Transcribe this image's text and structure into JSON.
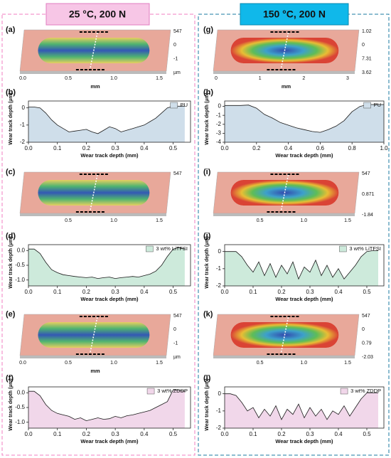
{
  "columns": [
    {
      "header": "25 °C, 200 N"
    },
    {
      "header": "150 °C, 200 N"
    }
  ],
  "images": [
    {
      "label": "(a)",
      "right_labels": [
        "547",
        "0",
        "-1",
        "µm"
      ],
      "bottom_labels": [
        "0.0",
        "0.5",
        "1.0",
        "1.5"
      ],
      "unit": "mm"
    },
    {
      "label": "(g)",
      "right_labels": [
        "1.02",
        "0",
        "7.31",
        "3.62"
      ],
      "bottom_labels": [
        "0",
        "1",
        "2",
        "3"
      ],
      "unit": "mm"
    },
    {
      "label": "(c)",
      "right_labels": [
        "547"
      ],
      "bottom_labels": [
        "0.5",
        "1.0",
        "1.5"
      ]
    },
    {
      "label": "(i)",
      "right_labels": [
        "547",
        "0.871",
        "-1.84"
      ],
      "bottom_labels": [
        "0.5",
        "1.0",
        "1.5"
      ]
    },
    {
      "label": "(e)",
      "right_labels": [
        "547",
        "0",
        "-1",
        "µm"
      ],
      "bottom_labels": [
        "0.0",
        "0.5",
        "1.0",
        "1.5"
      ],
      "unit": "mm"
    },
    {
      "label": "(k)",
      "right_labels": [
        "547",
        "0",
        "0.79",
        "-2.03"
      ],
      "bottom_labels": [
        "0.5",
        "1.0",
        "1.5"
      ]
    }
  ],
  "chart_data": [
    {
      "type": "line",
      "panel_label": "(b)",
      "x_label": "Wear track depth (mm)",
      "y_label": "Wear track depth (µm)",
      "legend": "upper right",
      "x": [
        0,
        0.02,
        0.04,
        0.06,
        0.08,
        0.1,
        0.12,
        0.14,
        0.16,
        0.18,
        0.2,
        0.22,
        0.24,
        0.26,
        0.28,
        0.3,
        0.32,
        0.34,
        0.36,
        0.38,
        0.4,
        0.42,
        0.44,
        0.46,
        0.48,
        0.5,
        0.52,
        0.54
      ],
      "series": [
        {
          "name": "PU",
          "color": "#1a1a1a",
          "fill": "#cfdeea",
          "values": [
            0.05,
            0.05,
            0,
            -0.3,
            -0.7,
            -1.0,
            -1.2,
            -1.4,
            -1.35,
            -1.3,
            -1.25,
            -1.4,
            -1.5,
            -1.3,
            -1.1,
            -1.2,
            -1.4,
            -1.3,
            -1.2,
            -1.1,
            -1.0,
            -0.8,
            -0.6,
            -0.3,
            0,
            0.1,
            0.1,
            0.1
          ]
        }
      ],
      "xlim": [
        0,
        0.56
      ],
      "xticks": [
        {
          "value": 0,
          "label": "0.0"
        },
        0.1,
        0.2,
        0.3,
        0.4,
        0.5
      ],
      "ylim": [
        -2,
        0.4
      ],
      "yticks": [
        0,
        -1,
        -2
      ]
    },
    {
      "type": "line",
      "panel_label": "(h)",
      "x_label": "Wear track depth (mm)",
      "y_label": "Wear track depth (µm)",
      "legend": "upper right",
      "x": [
        0,
        0.05,
        0.1,
        0.15,
        0.2,
        0.25,
        0.3,
        0.35,
        0.4,
        0.45,
        0.5,
        0.55,
        0.6,
        0.65,
        0.7,
        0.75,
        0.8,
        0.85,
        0.9,
        0.95,
        1.0
      ],
      "series": [
        {
          "name": "PU",
          "color": "#1a1a1a",
          "fill": "#cfdeea",
          "values": [
            0.1,
            0.1,
            0.1,
            0.15,
            -0.2,
            -0.9,
            -1.3,
            -1.8,
            -2.1,
            -2.4,
            -2.6,
            -2.8,
            -2.9,
            -2.6,
            -2.2,
            -1.6,
            -0.6,
            0,
            0.2,
            0.2,
            0.2
          ]
        }
      ],
      "xlim": [
        0,
        1.0
      ],
      "xticks": [
        {
          "value": 0,
          "label": "0.0"
        },
        0.2,
        0.4,
        0.6,
        0.8,
        {
          "value": 1,
          "label": "1.0"
        }
      ],
      "ylim": [
        -4,
        0.6
      ],
      "yticks": [
        0,
        -1,
        -2,
        -3,
        -4
      ]
    },
    {
      "type": "line",
      "panel_label": "(d)",
      "x_label": "Wear track depth (mm)",
      "y_label": "Wear track depth (µm)",
      "legend": "upper right",
      "x": [
        0,
        0.02,
        0.04,
        0.06,
        0.08,
        0.1,
        0.12,
        0.14,
        0.16,
        0.18,
        0.2,
        0.22,
        0.24,
        0.26,
        0.28,
        0.3,
        0.32,
        0.34,
        0.36,
        0.38,
        0.4,
        0.42,
        0.44,
        0.46,
        0.48,
        0.5,
        0.52,
        0.54
      ],
      "series": [
        {
          "name": "3 wt% LiTFSI",
          "color": "#1a1a1a",
          "fill": "#cdeadb",
          "values": [
            0.05,
            0.05,
            -0.1,
            -0.4,
            -0.65,
            -0.75,
            -0.82,
            -0.85,
            -0.88,
            -0.9,
            -0.92,
            -0.9,
            -0.95,
            -0.92,
            -0.9,
            -0.95,
            -0.92,
            -0.9,
            -0.88,
            -0.9,
            -0.85,
            -0.8,
            -0.7,
            -0.5,
            -0.2,
            0.05,
            0.1,
            0.05
          ]
        }
      ],
      "xlim": [
        0,
        0.56
      ],
      "xticks": [
        {
          "value": 0,
          "label": "0.0"
        },
        0.1,
        0.2,
        0.3,
        0.4,
        0.5
      ],
      "ylim": [
        -1.2,
        0.2
      ],
      "yticks": [
        {
          "value": 0,
          "label": "0.0"
        },
        -0.5,
        {
          "value": -1,
          "label": "-1.0"
        }
      ]
    },
    {
      "type": "line",
      "panel_label": "(j)",
      "x_label": "Wear track depth (mm)",
      "y_label": "Wear track depth (µm)",
      "legend": "upper right",
      "x": [
        0,
        0.02,
        0.04,
        0.06,
        0.08,
        0.1,
        0.12,
        0.14,
        0.16,
        0.18,
        0.2,
        0.22,
        0.24,
        0.26,
        0.28,
        0.3,
        0.32,
        0.34,
        0.36,
        0.38,
        0.4,
        0.42,
        0.44,
        0.46,
        0.48,
        0.5,
        0.52,
        0.54
      ],
      "series": [
        {
          "name": "3 wt% LiTFSI",
          "color": "#1a1a1a",
          "fill": "#cdeadb",
          "values": [
            0,
            0,
            0,
            -0.3,
            -0.8,
            -1.2,
            -0.6,
            -1.4,
            -0.7,
            -1.5,
            -0.8,
            -1.3,
            -0.6,
            -1.6,
            -0.9,
            -1.2,
            -0.5,
            -1.4,
            -0.8,
            -1.5,
            -1.0,
            -1.6,
            -1.2,
            -0.8,
            -0.3,
            0,
            0.05,
            0.05
          ]
        }
      ],
      "xlim": [
        0,
        0.56
      ],
      "xticks": [
        {
          "value": 0,
          "label": "0.0"
        },
        0.1,
        0.2,
        0.3,
        0.4,
        0.5
      ],
      "ylim": [
        -2,
        0.4
      ],
      "yticks": [
        0,
        -1,
        -2
      ]
    },
    {
      "type": "line",
      "panel_label": "(f)",
      "x_label": "Wear track depth (mm)",
      "y_label": "Wear track depth (µm)",
      "legend": "upper right",
      "x": [
        0,
        0.02,
        0.04,
        0.06,
        0.08,
        0.1,
        0.12,
        0.14,
        0.16,
        0.18,
        0.2,
        0.22,
        0.24,
        0.26,
        0.28,
        0.3,
        0.32,
        0.34,
        0.36,
        0.38,
        0.4,
        0.42,
        0.44,
        0.46,
        0.48,
        0.5,
        0.52,
        0.54
      ],
      "series": [
        {
          "name": "3 wt% ZDDP",
          "color": "#1a1a1a",
          "fill": "#f1d7ea",
          "values": [
            0.05,
            0.05,
            -0.1,
            -0.4,
            -0.6,
            -0.7,
            -0.75,
            -0.8,
            -0.9,
            -0.85,
            -0.95,
            -0.9,
            -0.85,
            -0.9,
            -0.88,
            -0.8,
            -0.85,
            -0.78,
            -0.75,
            -0.7,
            -0.65,
            -0.6,
            -0.5,
            -0.4,
            -0.3,
            0.1,
            0.08,
            0.05
          ]
        }
      ],
      "xlim": [
        0,
        0.56
      ],
      "xticks": [
        {
          "value": 0,
          "label": "0.0"
        },
        0.1,
        0.2,
        0.3,
        0.4,
        0.5
      ],
      "ylim": [
        -1.2,
        0.2
      ],
      "yticks": [
        {
          "value": 0,
          "label": "0.0"
        },
        -0.5,
        {
          "value": -1,
          "label": "-1.0"
        }
      ]
    },
    {
      "type": "line",
      "panel_label": "(l)",
      "x_label": "Wear track depth (mm)",
      "y_label": "Wear track depth (µm)",
      "legend": "upper right",
      "x": [
        0,
        0.02,
        0.04,
        0.06,
        0.08,
        0.1,
        0.12,
        0.14,
        0.16,
        0.18,
        0.2,
        0.22,
        0.24,
        0.26,
        0.28,
        0.3,
        0.32,
        0.34,
        0.36,
        0.38,
        0.4,
        0.42,
        0.44,
        0.46,
        0.48,
        0.5,
        0.52,
        0.54
      ],
      "series": [
        {
          "name": "3 wt% ZDDP",
          "color": "#1a1a1a",
          "fill": "#f1d7ea",
          "values": [
            0,
            0,
            -0.1,
            -0.5,
            -1.0,
            -0.8,
            -1.4,
            -0.9,
            -1.3,
            -0.7,
            -1.5,
            -0.9,
            -1.2,
            -0.6,
            -1.4,
            -0.8,
            -1.3,
            -0.9,
            -1.5,
            -1.0,
            -1.2,
            -0.7,
            -1.3,
            -0.8,
            -0.3,
            0.05,
            0.05,
            0.05
          ]
        }
      ],
      "xlim": [
        0,
        0.56
      ],
      "xticks": [
        {
          "value": 0,
          "label": "0.0"
        },
        0.1,
        0.2,
        0.3,
        0.4,
        0.5
      ],
      "ylim": [
        -2,
        0.4
      ],
      "yticks": [
        0,
        -1,
        -2
      ]
    }
  ]
}
